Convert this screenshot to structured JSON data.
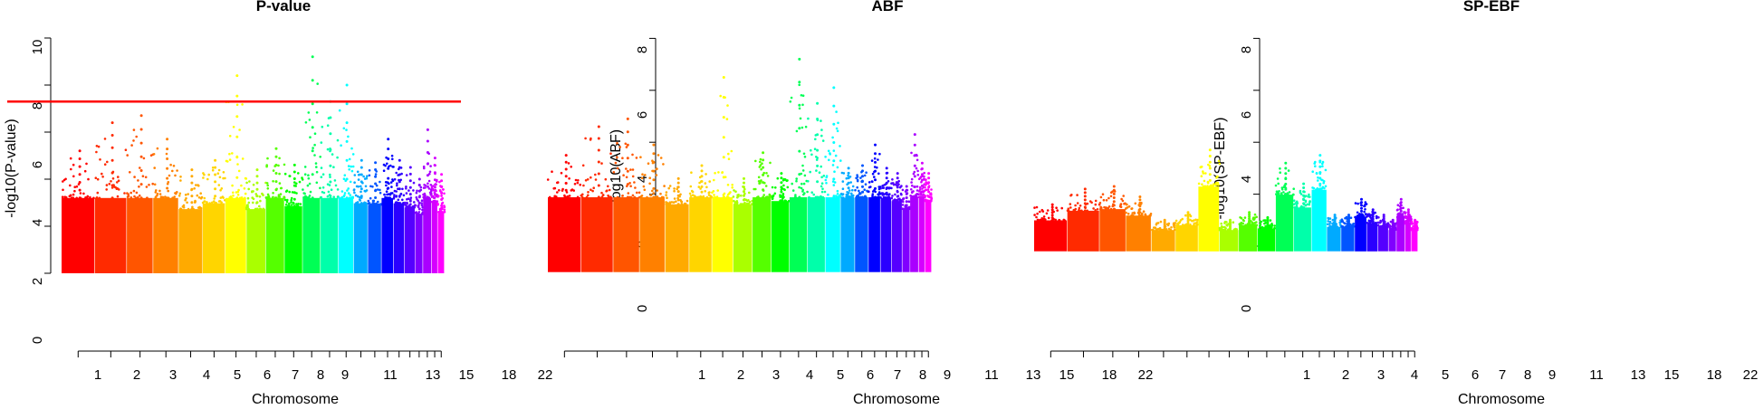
{
  "chart_data": [
    {
      "type": "scatter",
      "title": "P-value",
      "xlabel": "Chromosome",
      "ylabel": "-log10(P-value)",
      "ylim": [
        0,
        10
      ],
      "yticks": [
        "0",
        "2",
        "4",
        "6",
        "8",
        "10"
      ],
      "xtick_labels": [
        "1",
        "2",
        "3",
        "4",
        "5",
        "6",
        "7",
        "8",
        "9",
        "11",
        "13",
        "15",
        "18",
        "22"
      ],
      "threshold_line": 7.3,
      "peaks": [
        {
          "chromosome": 1,
          "value": 5.2
        },
        {
          "chromosome": 2,
          "value": 6.4
        },
        {
          "chromosome": 3,
          "value": 6.7
        },
        {
          "chromosome": 4,
          "value": 5.7
        },
        {
          "chromosome": 5,
          "value": 4.4
        },
        {
          "chromosome": 6,
          "value": 4.8
        },
        {
          "chromosome": 7,
          "value": 8.4
        },
        {
          "chromosome": 8,
          "value": 4.4
        },
        {
          "chromosome": 9,
          "value": 5.3
        },
        {
          "chromosome": 10,
          "value": 4.6
        },
        {
          "chromosome": 11,
          "value": 9.2
        },
        {
          "chromosome": 12,
          "value": 7.3
        },
        {
          "chromosome": 13,
          "value": 8.0
        },
        {
          "chromosome": 14,
          "value": 4.8
        },
        {
          "chromosome": 15,
          "value": 4.7
        },
        {
          "chromosome": 16,
          "value": 5.7
        },
        {
          "chromosome": 17,
          "value": 4.8
        },
        {
          "chromosome": 18,
          "value": 4.5
        },
        {
          "chromosome": 19,
          "value": 4.0
        },
        {
          "chromosome": 20,
          "value": 6.1
        },
        {
          "chromosome": 21,
          "value": 4.9
        },
        {
          "chromosome": 22,
          "value": 4.2
        }
      ]
    },
    {
      "type": "scatter",
      "title": "ABF",
      "xlabel": "Chromosome",
      "ylabel": "-log10(ABF)",
      "ylim": [
        -1,
        8
      ],
      "yticks": [
        "0",
        "2",
        "4",
        "6",
        "8"
      ],
      "xtick_labels": [
        "1",
        "2",
        "3",
        "4",
        "5",
        "6",
        "7",
        "8",
        "9",
        "11",
        "13",
        "15",
        "18",
        "22"
      ],
      "peaks": [
        {
          "chromosome": 1,
          "value": 3.5
        },
        {
          "chromosome": 2,
          "value": 4.6
        },
        {
          "chromosome": 3,
          "value": 4.9
        },
        {
          "chromosome": 4,
          "value": 3.9
        },
        {
          "chromosome": 5,
          "value": 2.6
        },
        {
          "chromosome": 6,
          "value": 3.1
        },
        {
          "chromosome": 7,
          "value": 6.5
        },
        {
          "chromosome": 8,
          "value": 2.6
        },
        {
          "chromosome": 9,
          "value": 3.6
        },
        {
          "chromosome": 10,
          "value": 2.8
        },
        {
          "chromosome": 11,
          "value": 7.2
        },
        {
          "chromosome": 12,
          "value": 5.5
        },
        {
          "chromosome": 13,
          "value": 6.1
        },
        {
          "chromosome": 14,
          "value": 3.0
        },
        {
          "chromosome": 15,
          "value": 3.1
        },
        {
          "chromosome": 16,
          "value": 3.9
        },
        {
          "chromosome": 17,
          "value": 3.0
        },
        {
          "chromosome": 18,
          "value": 2.8
        },
        {
          "chromosome": 19,
          "value": 2.3
        },
        {
          "chromosome": 20,
          "value": 4.3
        },
        {
          "chromosome": 21,
          "value": 3.2
        },
        {
          "chromosome": 22,
          "value": 2.8
        }
      ]
    },
    {
      "type": "scatter",
      "title": "SP-EBF",
      "xlabel": "Chromosome",
      "ylabel": "-log10(SP-EBF)",
      "ylim": [
        -1,
        8
      ],
      "yticks": [
        "0",
        "2",
        "4",
        "6",
        "8"
      ],
      "xtick_labels": [
        "1",
        "2",
        "3",
        "4",
        "5",
        "6",
        "7",
        "8",
        "9",
        "11",
        "13",
        "15",
        "18",
        "22"
      ],
      "peaks": [
        {
          "chromosome": 1,
          "value": 1.6
        },
        {
          "chromosome": 2,
          "value": 2.2
        },
        {
          "chromosome": 3,
          "value": 2.3
        },
        {
          "chromosome": 4,
          "value": 1.9
        },
        {
          "chromosome": 5,
          "value": 1.0
        },
        {
          "chromosome": 6,
          "value": 1.3
        },
        {
          "chromosome": 7,
          "value": 3.7
        },
        {
          "chromosome": 8,
          "value": 1.0
        },
        {
          "chromosome": 9,
          "value": 1.3
        },
        {
          "chromosome": 10,
          "value": 1.1
        },
        {
          "chromosome": 11,
          "value": 3.2
        },
        {
          "chromosome": 12,
          "value": 2.4
        },
        {
          "chromosome": 13,
          "value": 3.5
        },
        {
          "chromosome": 14,
          "value": 1.2
        },
        {
          "chromosome": 15,
          "value": 1.2
        },
        {
          "chromosome": 16,
          "value": 1.8
        },
        {
          "chromosome": 17,
          "value": 1.4
        },
        {
          "chromosome": 18,
          "value": 1.2
        },
        {
          "chromosome": 19,
          "value": 1.0
        },
        {
          "chromosome": 20,
          "value": 1.8
        },
        {
          "chromosome": 21,
          "value": 1.4
        },
        {
          "chromosome": 22,
          "value": 1.0
        }
      ]
    }
  ],
  "colors": {
    "threshold": "#ff0000",
    "chromosomes": [
      "#ff0000",
      "#ff2a00",
      "#ff5500",
      "#ff8000",
      "#ffaa00",
      "#ffd500",
      "#ffff00",
      "#aaff00",
      "#55ff00",
      "#00ff00",
      "#00ff55",
      "#00ffaa",
      "#00ffff",
      "#00aaff",
      "#0055ff",
      "#0000ff",
      "#2a00ff",
      "#5500ff",
      "#8000ff",
      "#aa00ff",
      "#d500ff",
      "#ff00ff"
    ]
  }
}
